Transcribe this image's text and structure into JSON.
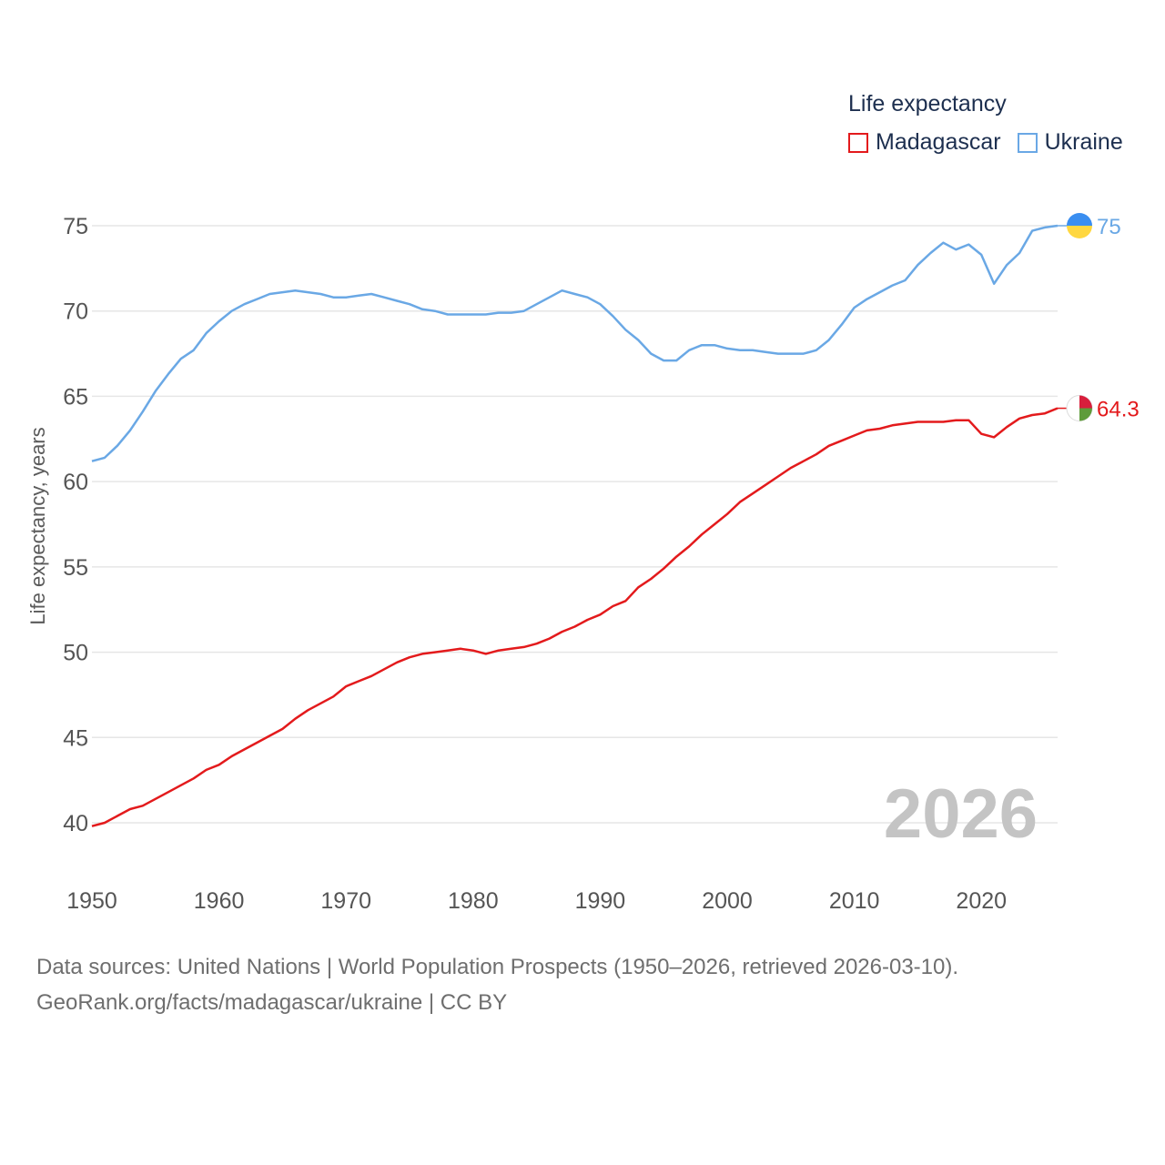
{
  "legend": {
    "title": "Life expectancy",
    "items": [
      {
        "label": "Madagascar",
        "color": "#e31a1c"
      },
      {
        "label": "Ukraine",
        "color": "#6aa8e5"
      }
    ]
  },
  "source": {
    "line1": "Data sources: United Nations | World Population Prospects (1950–2026, retrieved 2026-03-10).",
    "line2": "GeoRank.org/facts/madagascar/ukraine | CC BY"
  },
  "chart_data": {
    "type": "line",
    "title": "Life expectancy",
    "xlabel": "",
    "ylabel": "Life expectancy, years",
    "xlim": [
      1950,
      2026
    ],
    "ylim": [
      38.5,
      76
    ],
    "x_ticks": [
      1950,
      1960,
      1970,
      1980,
      1990,
      2000,
      2010,
      2020
    ],
    "y_ticks": [
      40,
      45,
      50,
      55,
      60,
      65,
      70,
      75
    ],
    "grid": true,
    "legend_position": "top-right",
    "year_watermark": "2026",
    "series": [
      {
        "name": "Ukraine",
        "color": "#6aa8e5",
        "end_label": "75",
        "flag_colors": [
          "#3a8ef0",
          "#ffd740"
        ],
        "points": [
          [
            1950,
            61.2
          ],
          [
            1951,
            61.4
          ],
          [
            1952,
            62.1
          ],
          [
            1953,
            63.0
          ],
          [
            1954,
            64.1
          ],
          [
            1955,
            65.3
          ],
          [
            1956,
            66.3
          ],
          [
            1957,
            67.2
          ],
          [
            1958,
            67.7
          ],
          [
            1959,
            68.7
          ],
          [
            1960,
            69.4
          ],
          [
            1961,
            70.0
          ],
          [
            1962,
            70.4
          ],
          [
            1963,
            70.7
          ],
          [
            1964,
            71.0
          ],
          [
            1965,
            71.1
          ],
          [
            1966,
            71.2
          ],
          [
            1967,
            71.1
          ],
          [
            1968,
            71.0
          ],
          [
            1969,
            70.8
          ],
          [
            1970,
            70.8
          ],
          [
            1971,
            70.9
          ],
          [
            1972,
            71.0
          ],
          [
            1973,
            70.8
          ],
          [
            1974,
            70.6
          ],
          [
            1975,
            70.4
          ],
          [
            1976,
            70.1
          ],
          [
            1977,
            70.0
          ],
          [
            1978,
            69.8
          ],
          [
            1979,
            69.8
          ],
          [
            1980,
            69.8
          ],
          [
            1981,
            69.8
          ],
          [
            1982,
            69.9
          ],
          [
            1983,
            69.9
          ],
          [
            1984,
            70.0
          ],
          [
            1985,
            70.4
          ],
          [
            1986,
            70.8
          ],
          [
            1987,
            71.2
          ],
          [
            1988,
            71.0
          ],
          [
            1989,
            70.8
          ],
          [
            1990,
            70.4
          ],
          [
            1991,
            69.7
          ],
          [
            1992,
            68.9
          ],
          [
            1993,
            68.3
          ],
          [
            1994,
            67.5
          ],
          [
            1995,
            67.1
          ],
          [
            1996,
            67.1
          ],
          [
            1997,
            67.7
          ],
          [
            1998,
            68.0
          ],
          [
            1999,
            68.0
          ],
          [
            2000,
            67.8
          ],
          [
            2001,
            67.7
          ],
          [
            2002,
            67.7
          ],
          [
            2003,
            67.6
          ],
          [
            2004,
            67.5
          ],
          [
            2005,
            67.5
          ],
          [
            2006,
            67.5
          ],
          [
            2007,
            67.7
          ],
          [
            2008,
            68.3
          ],
          [
            2009,
            69.2
          ],
          [
            2010,
            70.2
          ],
          [
            2011,
            70.7
          ],
          [
            2012,
            71.1
          ],
          [
            2013,
            71.5
          ],
          [
            2014,
            71.8
          ],
          [
            2015,
            72.7
          ],
          [
            2016,
            73.4
          ],
          [
            2017,
            74.0
          ],
          [
            2018,
            73.6
          ],
          [
            2019,
            73.9
          ],
          [
            2020,
            73.3
          ],
          [
            2021,
            71.6
          ],
          [
            2022,
            72.7
          ],
          [
            2023,
            73.4
          ],
          [
            2024,
            74.7
          ],
          [
            2025,
            74.9
          ],
          [
            2026,
            75.0
          ]
        ]
      },
      {
        "name": "Madagascar",
        "color": "#e31a1c",
        "end_label": "64.3",
        "flag_colors": [
          "#ffffff",
          "#d81e3c",
          "#5e9c3a"
        ],
        "points": [
          [
            1950,
            39.8
          ],
          [
            1951,
            40.0
          ],
          [
            1952,
            40.4
          ],
          [
            1953,
            40.8
          ],
          [
            1954,
            41.0
          ],
          [
            1955,
            41.4
          ],
          [
            1956,
            41.8
          ],
          [
            1957,
            42.2
          ],
          [
            1958,
            42.6
          ],
          [
            1959,
            43.1
          ],
          [
            1960,
            43.4
          ],
          [
            1961,
            43.9
          ],
          [
            1962,
            44.3
          ],
          [
            1963,
            44.7
          ],
          [
            1964,
            45.1
          ],
          [
            1965,
            45.5
          ],
          [
            1966,
            46.1
          ],
          [
            1967,
            46.6
          ],
          [
            1968,
            47.0
          ],
          [
            1969,
            47.4
          ],
          [
            1970,
            48.0
          ],
          [
            1971,
            48.3
          ],
          [
            1972,
            48.6
          ],
          [
            1973,
            49.0
          ],
          [
            1974,
            49.4
          ],
          [
            1975,
            49.7
          ],
          [
            1976,
            49.9
          ],
          [
            1977,
            50.0
          ],
          [
            1978,
            50.1
          ],
          [
            1979,
            50.2
          ],
          [
            1980,
            50.1
          ],
          [
            1981,
            49.9
          ],
          [
            1982,
            50.1
          ],
          [
            1983,
            50.2
          ],
          [
            1984,
            50.3
          ],
          [
            1985,
            50.5
          ],
          [
            1986,
            50.8
          ],
          [
            1987,
            51.2
          ],
          [
            1988,
            51.5
          ],
          [
            1989,
            51.9
          ],
          [
            1990,
            52.2
          ],
          [
            1991,
            52.7
          ],
          [
            1992,
            53.0
          ],
          [
            1993,
            53.8
          ],
          [
            1994,
            54.3
          ],
          [
            1995,
            54.9
          ],
          [
            1996,
            55.6
          ],
          [
            1997,
            56.2
          ],
          [
            1998,
            56.9
          ],
          [
            1999,
            57.5
          ],
          [
            2000,
            58.1
          ],
          [
            2001,
            58.8
          ],
          [
            2002,
            59.3
          ],
          [
            2003,
            59.8
          ],
          [
            2004,
            60.3
          ],
          [
            2005,
            60.8
          ],
          [
            2006,
            61.2
          ],
          [
            2007,
            61.6
          ],
          [
            2008,
            62.1
          ],
          [
            2009,
            62.4
          ],
          [
            2010,
            62.7
          ],
          [
            2011,
            63.0
          ],
          [
            2012,
            63.1
          ],
          [
            2013,
            63.3
          ],
          [
            2014,
            63.4
          ],
          [
            2015,
            63.5
          ],
          [
            2016,
            63.5
          ],
          [
            2017,
            63.5
          ],
          [
            2018,
            63.6
          ],
          [
            2019,
            63.6
          ],
          [
            2020,
            62.8
          ],
          [
            2021,
            62.6
          ],
          [
            2022,
            63.2
          ],
          [
            2023,
            63.7
          ],
          [
            2024,
            63.9
          ],
          [
            2025,
            64.0
          ],
          [
            2026,
            64.3
          ]
        ]
      }
    ]
  }
}
